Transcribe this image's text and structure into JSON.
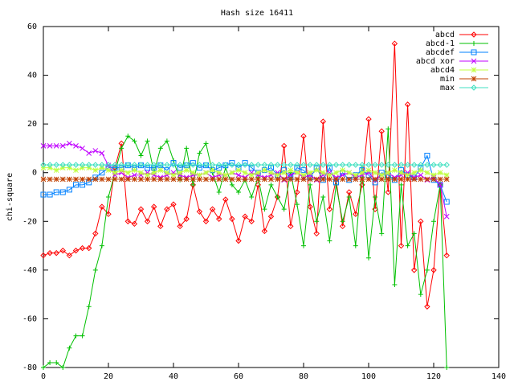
{
  "chart_data": {
    "type": "line",
    "title": "Hash size 16411",
    "y_label": "chi-square",
    "x": [
      0,
      2,
      4,
      6,
      8,
      10,
      12,
      14,
      16,
      18,
      20,
      22,
      24,
      26,
      28,
      30,
      32,
      34,
      36,
      38,
      40,
      42,
      44,
      46,
      48,
      50,
      52,
      54,
      56,
      58,
      60,
      62,
      64,
      66,
      68,
      70,
      72,
      74,
      76,
      78,
      80,
      82,
      84,
      86,
      88,
      90,
      92,
      94,
      96,
      98,
      100,
      102,
      104,
      106,
      108,
      110,
      112,
      114,
      116,
      118,
      120,
      122,
      124
    ],
    "xlim": [
      0,
      140
    ],
    "xticks": [
      0,
      20,
      40,
      60,
      80,
      100,
      120,
      140
    ],
    "ylim": [
      -80,
      60
    ],
    "yticks": [
      -80,
      -60,
      -40,
      -20,
      0,
      20,
      40,
      60
    ],
    "legend": "top-right",
    "series": [
      {
        "name": "abcd",
        "color": "#ff0000",
        "marker": "diamond",
        "values": [
          -34,
          -33,
          -33,
          -32,
          -34,
          -32,
          -31,
          -31,
          -25,
          -14,
          -17,
          2,
          12,
          -20,
          -21,
          -15,
          -20,
          -14,
          -22,
          -15,
          -13,
          -22,
          -19,
          -5,
          -16,
          -20,
          -15,
          -19,
          -11,
          -19,
          -28,
          -18,
          -20,
          -5,
          -24,
          -18,
          -10,
          11,
          -22,
          -8,
          15,
          -14,
          -25,
          21,
          -15,
          -3,
          -22,
          -8,
          -17,
          -5,
          22,
          -15,
          17,
          -8,
          53,
          -30,
          28,
          -40,
          -20,
          -55,
          -40,
          -5,
          -34
        ]
      },
      {
        "name": "abcd-1",
        "color": "#00c000",
        "marker": "plus",
        "values": [
          -80,
          -78,
          -78,
          -80,
          -72,
          -67,
          -67,
          -55,
          -40,
          -30,
          -10,
          0,
          10,
          15,
          13,
          7,
          13,
          0,
          10,
          13,
          5,
          -3,
          10,
          -5,
          8,
          12,
          0,
          -8,
          2,
          -5,
          -8,
          -3,
          -10,
          -2,
          -15,
          -5,
          -10,
          -15,
          0,
          -13,
          -30,
          -5,
          -20,
          -10,
          -28,
          -5,
          -20,
          -10,
          -30,
          2,
          -35,
          -10,
          -25,
          18,
          -46,
          -5,
          -30,
          -25,
          -50,
          -40,
          -20,
          -5,
          -80
        ]
      },
      {
        "name": "abcdef",
        "color": "#0080ff",
        "marker": "square",
        "values": [
          -9,
          -9,
          -8,
          -8,
          -7,
          -5,
          -5,
          -4,
          -2,
          0,
          2,
          2,
          2,
          3,
          2,
          3,
          2,
          2,
          3,
          1,
          4,
          2,
          3,
          4,
          2,
          3,
          1,
          2,
          3,
          4,
          2,
          4,
          2,
          0,
          1,
          2,
          -1,
          1,
          -2,
          2,
          1,
          -2,
          2,
          -3,
          2,
          -4,
          0,
          -3,
          -1,
          1,
          -1,
          -4,
          0,
          -1,
          -3,
          1,
          -1,
          -2,
          2,
          7,
          -3,
          -5,
          -12
        ]
      },
      {
        "name": "abcd xor",
        "color": "#c000ff",
        "marker": "cross",
        "values": [
          11,
          11,
          11,
          11,
          12,
          11,
          10,
          8,
          9,
          8,
          3,
          -1,
          0,
          -2,
          -1,
          -1,
          0,
          -1,
          -2,
          -1,
          0,
          -1,
          -2,
          -1,
          -1,
          0,
          -2,
          -1,
          -1,
          0,
          -1,
          -2,
          0,
          -1,
          -2,
          -1,
          0,
          -3,
          -1,
          0,
          -2,
          -1,
          -3,
          -1,
          0,
          -2,
          -1,
          0,
          -2,
          -1,
          0,
          -3,
          -1,
          0,
          -2,
          -1,
          0,
          -2,
          -1,
          -3,
          -2,
          -5,
          -18
        ]
      },
      {
        "name": "abcd4",
        "color": "#c0ff40",
        "marker": "star",
        "values": [
          2,
          2,
          1,
          2,
          2,
          1,
          2,
          2,
          1,
          2,
          1,
          0,
          1,
          0,
          1,
          0,
          -1,
          0,
          1,
          0,
          -1,
          0,
          1,
          0,
          -1,
          0,
          1,
          0,
          -1,
          0,
          1,
          0,
          -1,
          0,
          1,
          0,
          -1,
          0,
          1,
          0,
          -1,
          0,
          1,
          0,
          -1,
          0,
          1,
          0,
          -1,
          0,
          1,
          0,
          -1,
          0,
          1,
          0,
          -1,
          0,
          1,
          0,
          -1,
          0,
          -1
        ]
      },
      {
        "name": "min",
        "color": "#c04000",
        "marker": "star",
        "values": [
          -2.7,
          -2.7,
          -2.7,
          -2.7,
          -2.7,
          -2.7,
          -2.7,
          -2.7,
          -2.7,
          -2.7,
          -2.7,
          -2.7,
          -2.7,
          -2.7,
          -2.7,
          -2.7,
          -2.7,
          -2.7,
          -2.7,
          -2.7,
          -2.7,
          -2.7,
          -2.7,
          -2.7,
          -2.7,
          -2.7,
          -2.7,
          -2.7,
          -2.7,
          -2.7,
          -2.7,
          -2.7,
          -2.7,
          -2.7,
          -2.7,
          -2.7,
          -2.7,
          -2.7,
          -2.7,
          -2.7,
          -2.7,
          -2.7,
          -2.7,
          -2.7,
          -2.7,
          -2.7,
          -2.7,
          -2.7,
          -2.7,
          -2.7,
          -2.7,
          -2.7,
          -2.7,
          -2.7,
          -2.7,
          -2.7,
          -2.7,
          -2.7,
          -2.7,
          -2.7,
          -2.7,
          -2.7,
          -2.7
        ]
      },
      {
        "name": "max",
        "color": "#40e0c0",
        "marker": "diamond",
        "values": [
          3.2,
          3.2,
          3.2,
          3.2,
          3.2,
          3.2,
          3.2,
          3.2,
          3.2,
          3.2,
          3.2,
          3.2,
          3.2,
          3.2,
          3.2,
          3.2,
          3.2,
          3.2,
          3.2,
          3.2,
          3.2,
          3.2,
          3.2,
          3.2,
          3.2,
          3.2,
          3.2,
          3.2,
          3.2,
          3.2,
          3.2,
          3.2,
          3.2,
          3.2,
          3.2,
          3.2,
          3.2,
          3.2,
          3.2,
          3.2,
          3.2,
          3.2,
          3.2,
          3.2,
          3.2,
          3.2,
          3.2,
          3.2,
          3.2,
          3.2,
          3.2,
          3.2,
          3.2,
          3.2,
          3.2,
          3.2,
          3.2,
          3.2,
          3.2,
          3.2,
          3.2,
          3.2,
          3.2
        ]
      }
    ]
  }
}
